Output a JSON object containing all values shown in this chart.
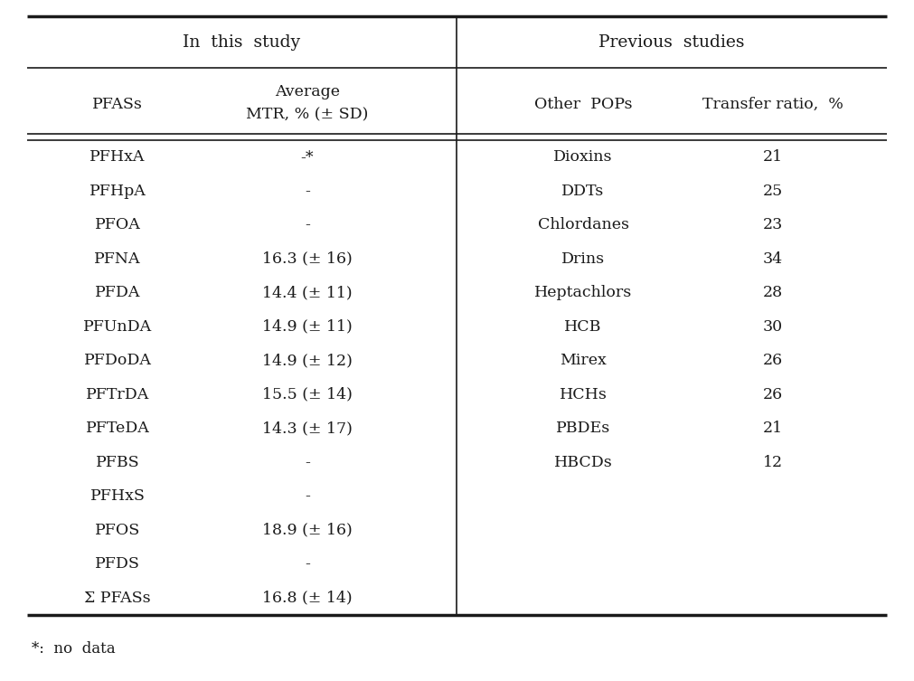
{
  "title_left": "In  this  study",
  "title_right": "Previous  studies",
  "col_headers_left": [
    "PFASs",
    "Average\nMTR, % (± SD)"
  ],
  "col_headers_right": [
    "Other  POPs",
    "Transfer ratio,  %"
  ],
  "left_rows": [
    [
      "PFHxA",
      "-*"
    ],
    [
      "PFHpA",
      "-"
    ],
    [
      "PFOA",
      "-"
    ],
    [
      "PFNA",
      "16.3 (± 16)"
    ],
    [
      "PFDA",
      "14.4 (± 11)"
    ],
    [
      "PFUnDA",
      "14.9 (± 11)"
    ],
    [
      "PFDoDA",
      "14.9 (± 12)"
    ],
    [
      "PFTrDA",
      "15.5 (± 14)"
    ],
    [
      "PFTeDA",
      "14.3 (± 17)"
    ],
    [
      "PFBS",
      "-"
    ],
    [
      "PFHxS",
      "-"
    ],
    [
      "PFOS",
      "18.9 (± 16)"
    ],
    [
      "PFDS",
      "-"
    ],
    [
      "Σ PFASs",
      "16.8 (± 14)"
    ]
  ],
  "right_rows": [
    [
      "Dioxins",
      "21"
    ],
    [
      "DDTs",
      "25"
    ],
    [
      "Chlordanes",
      "23"
    ],
    [
      "Drins",
      "34"
    ],
    [
      "Heptachlors",
      "28"
    ],
    [
      "HCB",
      "30"
    ],
    [
      "Mirex",
      "26"
    ],
    [
      "HCHs",
      "26"
    ],
    [
      "PBDEs",
      "21"
    ],
    [
      "HBCDs",
      "12"
    ]
  ],
  "footnote": "*:  no  data",
  "bg_color": "#ffffff",
  "text_color": "#1a1a1a",
  "line_color": "#1a1a1a",
  "font_size": 12.5,
  "title_font_size": 13.5
}
